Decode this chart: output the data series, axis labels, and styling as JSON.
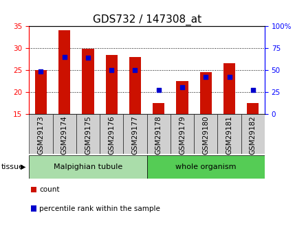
{
  "title": "GDS732 / 147308_at",
  "samples": [
    "GSM29173",
    "GSM29174",
    "GSM29175",
    "GSM29176",
    "GSM29177",
    "GSM29178",
    "GSM29179",
    "GSM29180",
    "GSM29181",
    "GSM29182"
  ],
  "counts": [
    25.0,
    34.0,
    29.8,
    28.4,
    28.0,
    17.5,
    22.5,
    24.5,
    26.5,
    17.5
  ],
  "percentiles": [
    48,
    65,
    64,
    50,
    50,
    27,
    30,
    42,
    42,
    27
  ],
  "ymin": 15,
  "ymax": 35,
  "y_left_ticks": [
    15,
    20,
    25,
    30,
    35
  ],
  "y_right_ticks": [
    0,
    25,
    50,
    75,
    100
  ],
  "bar_color": "#cc1100",
  "dot_color": "#0000cc",
  "tissue_groups": [
    {
      "label": "Malpighian tubule",
      "start": 0,
      "end": 5,
      "color": "#aaddaa"
    },
    {
      "label": "whole organism",
      "start": 5,
      "end": 10,
      "color": "#55cc55"
    }
  ],
  "legend_items": [
    {
      "label": "count",
      "color": "#cc1100"
    },
    {
      "label": "percentile rank within the sample",
      "color": "#0000cc"
    }
  ],
  "xlabel_tissue": "tissue",
  "title_fontsize": 11,
  "tick_label_fontsize": 7.5,
  "bar_width": 0.5,
  "background_color": "#ffffff",
  "plot_bg_color": "#ffffff",
  "grid_color": "#000000",
  "tick_bg_color": "#d0d0d0"
}
